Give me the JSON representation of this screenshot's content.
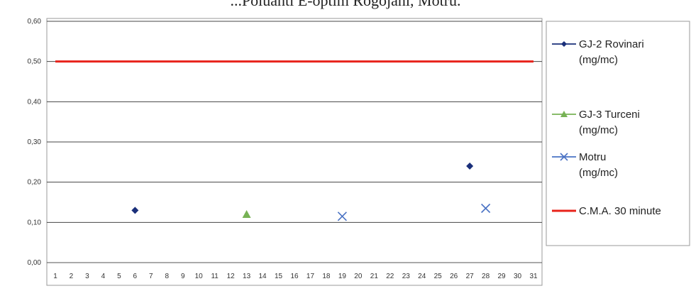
{
  "chart_data": {
    "type": "scatter",
    "title": "...Poluanti E-optim Rogojani, Motru.",
    "xlabel": "",
    "ylabel": "",
    "x_categories": [
      "1",
      "2",
      "3",
      "4",
      "5",
      "6",
      "7",
      "8",
      "9",
      "10",
      "11",
      "12",
      "13",
      "14",
      "15",
      "16",
      "17",
      "18",
      "19",
      "20",
      "21",
      "22",
      "23",
      "24",
      "25",
      "26",
      "27",
      "28",
      "29",
      "30",
      "31"
    ],
    "ylim": [
      0,
      0.6
    ],
    "y_ticks": [
      "0,00",
      "0,10",
      "0,20",
      "0,30",
      "0,40",
      "0,50",
      "0,60"
    ],
    "grid": true,
    "legend_position": "right",
    "series": [
      {
        "name": "GJ-2 Rovinari (mg/mc)",
        "marker": "diamond",
        "color": "#1a2f7a",
        "points": [
          [
            6,
            0.13
          ],
          [
            27,
            0.24
          ]
        ]
      },
      {
        "name": "GJ-3 Turceni (mg/mc)",
        "marker": "triangle",
        "color": "#77b255",
        "points": [
          [
            13,
            0.12
          ]
        ]
      },
      {
        "name": "Motru (mg/mc)",
        "marker": "x",
        "color": "#4a72c4",
        "points": [
          [
            19,
            0.115
          ],
          [
            28,
            0.135
          ]
        ]
      },
      {
        "name": "C.M.A. 30 minute",
        "marker": "line",
        "color": "#e8231b",
        "points": [
          [
            1,
            0.5
          ],
          [
            31,
            0.5
          ]
        ]
      }
    ]
  }
}
